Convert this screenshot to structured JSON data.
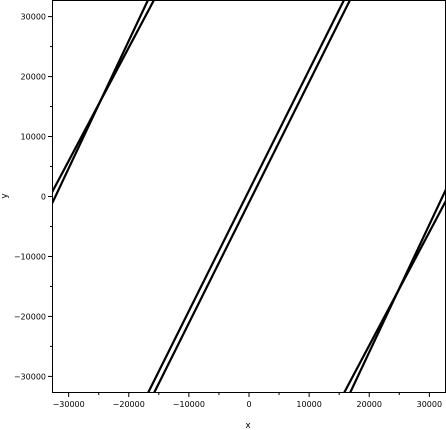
{
  "chart_data": {
    "type": "line",
    "title": "",
    "xlabel": "x",
    "ylabel": "y",
    "xlim": [
      -32768,
      32767
    ],
    "ylim": [
      -32768,
      32767
    ],
    "grid": false,
    "x_ticks": [
      -30000,
      -20000,
      -10000,
      0,
      10000,
      20000,
      30000
    ],
    "y_ticks": [
      -30000,
      -20000,
      -10000,
      0,
      10000,
      20000,
      30000
    ],
    "x_tick_labels": [
      "−30000",
      "−20000",
      "−10000",
      "0",
      "10000",
      "20000",
      "30000"
    ],
    "y_tick_labels": [
      "−30000",
      "−20000",
      "−10000",
      "0",
      "10000",
      "20000",
      "30000"
    ],
    "series": [
      {
        "values": [
          [
            -32768,
            -1200
          ],
          [
            -16800,
            32767
          ]
        ]
      },
      {
        "values": [
          [
            -32768,
            700
          ],
          [
            -15800,
            32767
          ]
        ]
      },
      {
        "values": [
          [
            -16800,
            -32768
          ],
          [
            15800,
            32767
          ]
        ]
      },
      {
        "values": [
          [
            -15800,
            -32768
          ],
          [
            16800,
            32767
          ]
        ]
      },
      {
        "values": [
          [
            15800,
            -32768
          ],
          [
            32767,
            -700
          ]
        ]
      },
      {
        "values": [
          [
            16800,
            -32768
          ],
          [
            32767,
            1200
          ]
        ]
      }
    ]
  }
}
